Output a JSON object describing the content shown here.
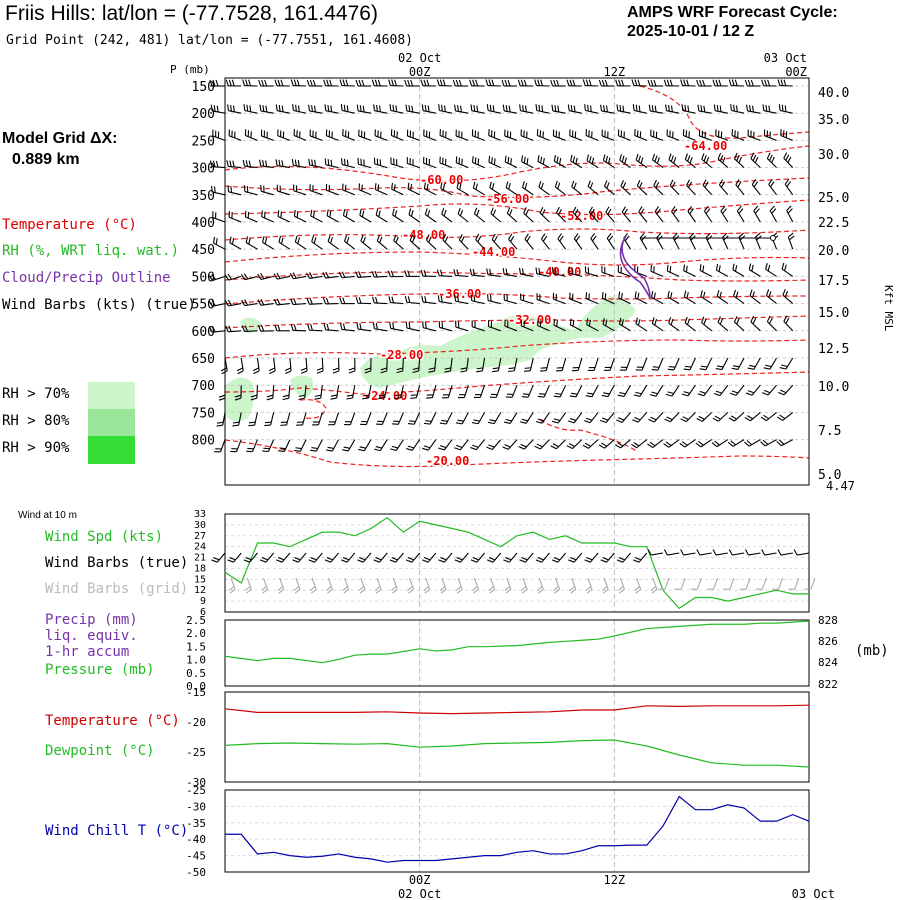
{
  "header": {
    "title": "Friis Hills:  lat/lon = (-77.7528, 161.4476)",
    "subtitle": "Grid Point (242, 481) lat/lon = (-77.7551, 161.4608)",
    "cycle_line1": "AMPS WRF Forecast Cycle:",
    "cycle_line2": "2025-10-01 / 12  Z"
  },
  "grid": {
    "label": "Model Grid ΔX:",
    "value": "0.889 km"
  },
  "time_axis": {
    "top_dates": [
      "02 Oct",
      "03 Oct"
    ],
    "ticks": [
      "00Z",
      "12Z",
      "00Z"
    ],
    "bottom_ticks": [
      "00Z",
      "12Z"
    ],
    "bottom_dates": [
      "02 Oct",
      "03 Oct"
    ]
  },
  "legend": {
    "temperature": "Temperature (°C)",
    "rh": "RH (%, WRT liq. wat.)",
    "cloud": "Cloud/Precip Outline",
    "wind": "Wind Barbs (kts) (true)",
    "rh70": "RH > 70%",
    "rh80": "RH > 80%",
    "rh90": "RH > 90%",
    "rh70_color": "#ccf5cc",
    "rh80_color": "#99e699",
    "rh90_color": "#33dd33"
  },
  "panel2_labels": {
    "header": "Wind at 10 m",
    "spd": "Wind Spd (kts)",
    "barbs_true": "Wind Barbs (true)",
    "barbs_grid": "Wind Barbs (grid)"
  },
  "panel3_labels": {
    "precip1": "Precip (mm)",
    "precip2": "liq. equiv.",
    "precip3": "1-hr accum",
    "pressure": "Pressure (mb)",
    "mb": "(mb)"
  },
  "panel4_labels": {
    "temp": "Temperature (°C)",
    "dew": "Dewpoint (°C)"
  },
  "panel5_labels": {
    "windchill": "Wind Chill T (°C)"
  },
  "chart_data": [
    {
      "type": "heatmap",
      "name": "time-height cross section",
      "y_label_left": "P (mb)",
      "y_label_right": "Kft MSL",
      "pressure_ticks": [
        "150",
        "200",
        "250",
        "300",
        "350",
        "400",
        "450",
        "500",
        "550",
        "600",
        "650",
        "700",
        "750",
        "800"
      ],
      "height_ticks": [
        "40.0",
        "35.0",
        "30.0",
        "25.0",
        "22.5",
        "20.0",
        "17.5",
        "15.0",
        "12.5",
        "10.0",
        "7.5",
        "5.0"
      ],
      "height_top": "4.47",
      "temperature_labels": [
        "-64.00",
        "-60.00",
        "-56.00",
        "-52.00",
        "-48.00",
        "-44.00",
        "-40.00",
        "-36.00",
        "-32.00",
        "-28.00",
        "-24.00",
        "-20.00"
      ],
      "wind_barbs": "wind barbs at every hour and level"
    },
    {
      "type": "line",
      "name": "wind speed 10 m",
      "ylim": [
        6,
        33
      ],
      "yticks": [
        "33",
        "30",
        "27",
        "24",
        "21",
        "18",
        "15",
        "12",
        "9",
        "6"
      ],
      "x_hours": [
        0,
        1,
        2,
        3,
        4,
        5,
        6,
        7,
        8,
        9,
        10,
        11,
        12,
        13,
        14,
        15,
        16,
        17,
        18,
        19,
        20,
        21,
        22,
        23,
        24,
        25,
        26,
        27,
        28,
        29,
        30,
        31,
        32,
        33,
        34,
        35,
        36
      ],
      "values": [
        17,
        14,
        25,
        25,
        24,
        26,
        28,
        28,
        27,
        29,
        32,
        28,
        31,
        30,
        29,
        28,
        26,
        24,
        27,
        28,
        26,
        27,
        25,
        25,
        25,
        24,
        24,
        12,
        7,
        10,
        10,
        9,
        10,
        11,
        12,
        11,
        11
      ]
    },
    {
      "type": "line",
      "name": "pressure",
      "ylim_precip": [
        0.0,
        2.5
      ],
      "yticks_precip": [
        "2.5",
        "2.0",
        "1.5",
        "1.0",
        "0.5",
        "0.0"
      ],
      "yticks_pressure": [
        "828",
        "826",
        "824",
        "822"
      ],
      "x_hours": [
        0,
        2,
        3,
        4,
        6,
        7,
        8,
        9,
        10,
        12,
        13,
        14,
        15,
        16,
        18,
        20,
        21,
        22,
        23,
        24,
        26,
        28,
        30,
        32,
        33,
        34,
        35,
        36
      ],
      "values": [
        824.6,
        824.2,
        824.4,
        824.4,
        824.0,
        824.3,
        824.7,
        824.8,
        824.8,
        825.3,
        825.1,
        825.2,
        825.5,
        825.5,
        825.6,
        825.9,
        826.0,
        826.1,
        826.2,
        826.5,
        827.2,
        827.4,
        827.6,
        827.6,
        827.7,
        827.7,
        827.8,
        827.9
      ]
    },
    {
      "type": "line",
      "name": "temperature and dewpoint",
      "ylim": [
        -30,
        -15
      ],
      "yticks": [
        "-15",
        "-20",
        "-25",
        "-30"
      ],
      "series": [
        {
          "name": "Temperature",
          "x_hours": [
            0,
            2,
            4,
            6,
            8,
            10,
            12,
            14,
            16,
            18,
            20,
            22,
            24,
            26,
            28,
            30,
            32,
            34,
            36
          ],
          "values": [
            -17.8,
            -18.4,
            -18.4,
            -18.4,
            -18.4,
            -18.3,
            -18.5,
            -18.6,
            -18.5,
            -18.4,
            -18.3,
            -18.0,
            -18.0,
            -17.3,
            -17.4,
            -17.3,
            -17.3,
            -17.3,
            -17.2
          ]
        },
        {
          "name": "Dewpoint",
          "x_hours": [
            0,
            2,
            4,
            6,
            8,
            10,
            12,
            14,
            16,
            18,
            20,
            22,
            24,
            26,
            28,
            30,
            32,
            34,
            36
          ],
          "values": [
            -23.9,
            -23.6,
            -23.5,
            -23.6,
            -23.7,
            -23.6,
            -24.2,
            -24.0,
            -23.6,
            -23.5,
            -23.4,
            -23.1,
            -23.0,
            -24.0,
            -25.5,
            -26.8,
            -27.2,
            -27.2,
            -27.5
          ]
        }
      ]
    },
    {
      "type": "line",
      "name": "wind chill",
      "ylim": [
        -50,
        -25
      ],
      "yticks": [
        "-25",
        "-30",
        "-35",
        "-40",
        "-45",
        "-50"
      ],
      "x_hours": [
        0,
        1,
        2,
        3,
        4,
        5,
        6,
        7,
        8,
        9,
        10,
        11,
        12,
        13,
        14,
        15,
        16,
        17,
        18,
        19,
        20,
        21,
        22,
        23,
        24,
        25,
        26,
        27,
        28,
        29,
        30,
        31,
        32,
        33,
        34,
        35,
        36
      ],
      "values": [
        -38.5,
        -38.5,
        -44.5,
        -44,
        -45,
        -45.5,
        -45.2,
        -44.5,
        -45.5,
        -46,
        -47,
        -46.5,
        -46.5,
        -46.5,
        -46,
        -45.5,
        -45,
        -45,
        -44,
        -43.5,
        -44.5,
        -44.5,
        -43.5,
        -42,
        -42,
        -41.8,
        -41.8,
        -36,
        -27,
        -31,
        -31,
        -29.5,
        -30.5,
        -34.5,
        -34.5,
        -32.5,
        -34.5
      ]
    }
  ]
}
